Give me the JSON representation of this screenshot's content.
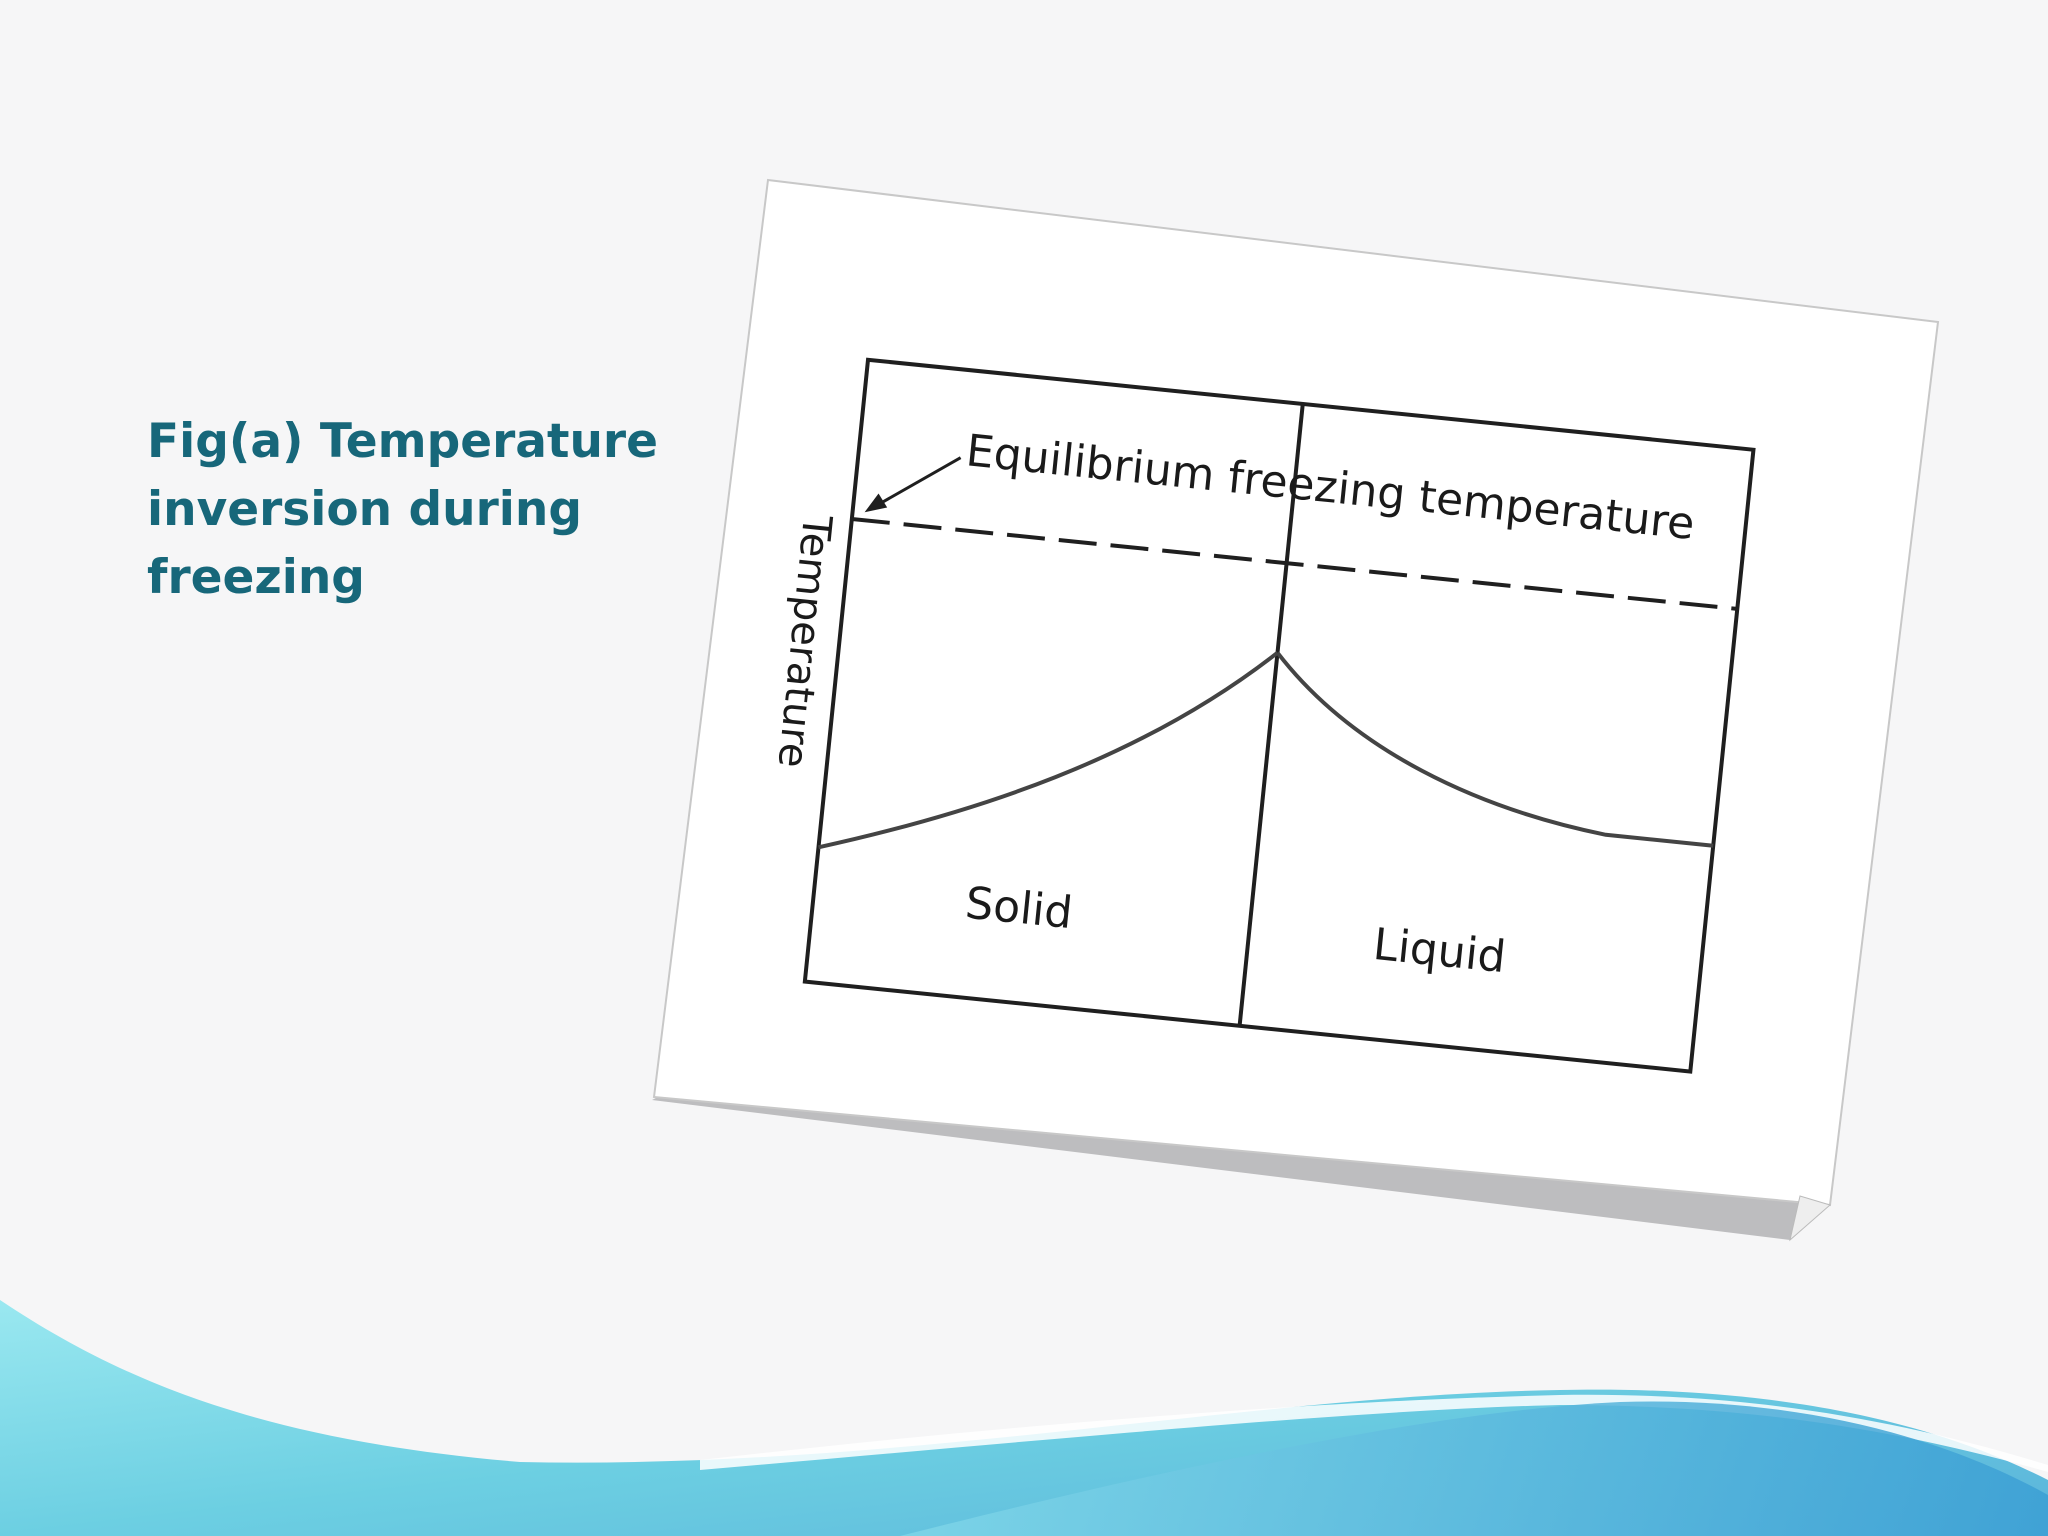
{
  "slide": {
    "caption_lines": [
      "Fig(a) Temperature",
      "inversion during",
      "freezing"
    ]
  },
  "diagram": {
    "equilibrium_label": "Equilibrium freezing temperature",
    "axis_label": "Temperature",
    "solid_label": "Solid",
    "liquid_label": "Liquid"
  },
  "colors": {
    "caption": "#17677a",
    "wave_light": "#8de3ec",
    "wave_mid": "#5cc4dc",
    "wave_dark": "#3aa7d6"
  }
}
